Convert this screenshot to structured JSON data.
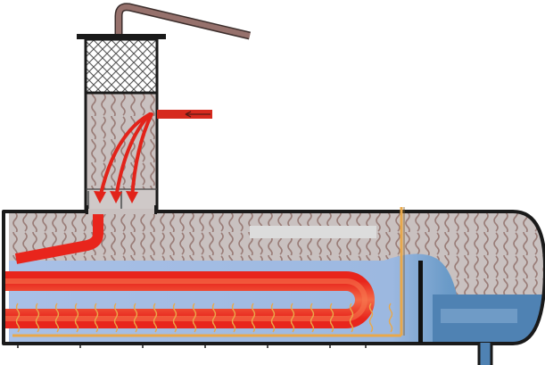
{
  "diagram": {
    "description_free": true,
    "colors": {
      "shell_outline": "#1a1a1a",
      "vapor_fill": "#c9c1c0",
      "vapor_wave": "#9a7d78",
      "liquid_fill": "#a9c0e6",
      "liquid_dark": "#4f82b3",
      "hot_tube": "#e8251c",
      "hot_tube_core": "#f6724a",
      "inlet_arrow": "#d62a1e",
      "heating_element": "#e9a84a",
      "outlet_pipe": "#96716c",
      "mesh": "#555555",
      "weir": "#111111",
      "blanked_label": "#dcdcdc"
    },
    "components": [
      {
        "name": "vapor-outlet-pipe",
        "icon": "pipe-icon"
      },
      {
        "name": "mist-eliminator-mesh",
        "icon": "mesh-icon"
      },
      {
        "name": "feed-inlet",
        "icon": "arrow-left-icon"
      },
      {
        "name": "separator-column",
        "icon": "column-icon"
      },
      {
        "name": "horizontal-vessel",
        "icon": "vessel-icon"
      },
      {
        "name": "u-tube-heat-exchanger",
        "icon": "u-tube-icon"
      },
      {
        "name": "heating-coil",
        "icon": "heater-icon"
      },
      {
        "name": "overflow-weir",
        "icon": "weir-icon"
      },
      {
        "name": "drain-nozzle",
        "icon": "nozzle-icon"
      }
    ],
    "labels": {
      "upper_label": "",
      "lower_right_label": ""
    }
  }
}
